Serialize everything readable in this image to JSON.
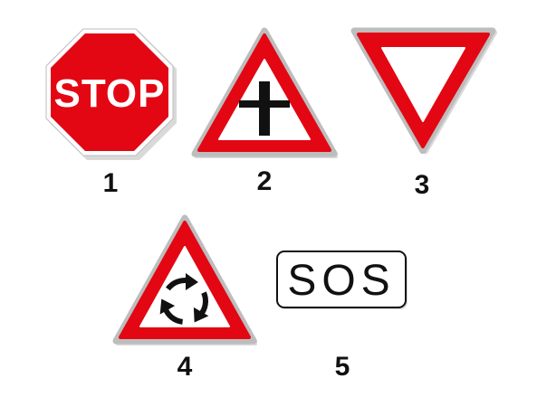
{
  "signs": [
    {
      "id": 1,
      "type": "stop",
      "text": "STOP",
      "number": "1"
    },
    {
      "id": 2,
      "type": "priority-crossroad-warning",
      "number": "2"
    },
    {
      "id": 3,
      "type": "yield",
      "number": "3"
    },
    {
      "id": 4,
      "type": "roundabout-warning",
      "number": "4"
    },
    {
      "id": 5,
      "type": "sos-plate",
      "text": "SOS",
      "number": "5"
    }
  ],
  "colors": {
    "red": "#e30613",
    "black": "#111111",
    "white": "#ffffff",
    "shadow": "#cfcfcf"
  }
}
